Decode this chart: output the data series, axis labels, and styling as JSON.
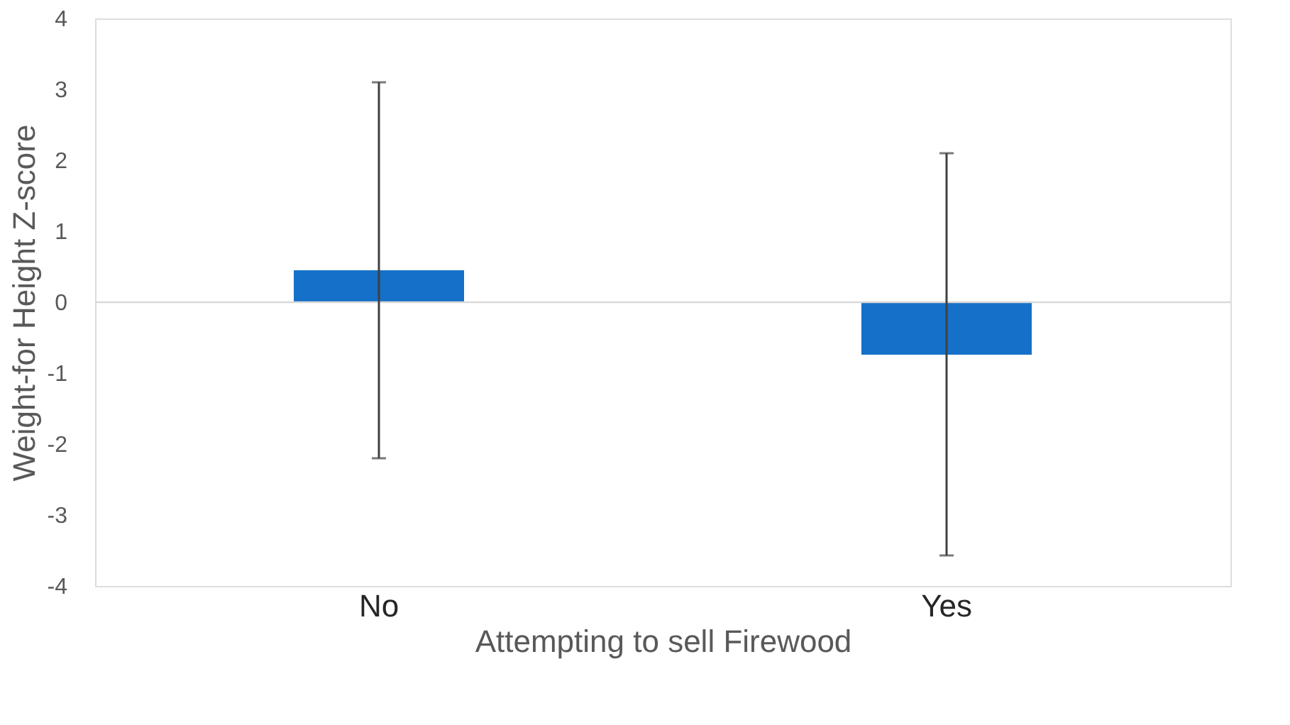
{
  "chart_data": {
    "type": "bar",
    "xlabel": "Attempting to sell Firewood",
    "ylabel": "Weight-for Height Z-score",
    "categories": [
      "No",
      "Yes"
    ],
    "values": [
      0.45,
      -0.74
    ],
    "errors": [
      [
        -2.2,
        3.1
      ],
      [
        -3.57,
        2.1
      ]
    ],
    "color": "#1470c8",
    "ylim": [
      -4,
      4
    ],
    "yticks": [
      -4,
      -3,
      -2,
      -1,
      0,
      1,
      2,
      3,
      4
    ],
    "ref_lines": [
      {
        "axis": "y",
        "value": 0,
        "color": "#d9d9d9"
      }
    ],
    "grid": false
  }
}
